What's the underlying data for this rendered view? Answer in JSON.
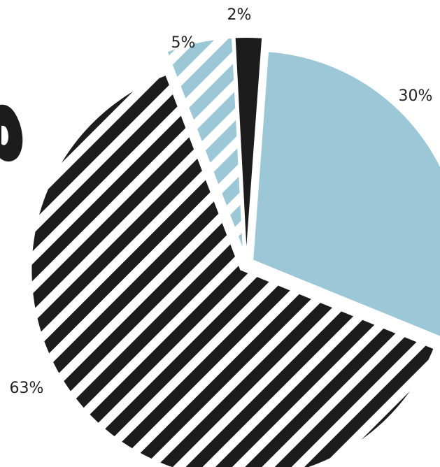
{
  "chart_data": {
    "type": "pie",
    "values": [
      2,
      30,
      63,
      5
    ],
    "labels": [
      "2%",
      "30%",
      "63%",
      "5%"
    ],
    "colors": [
      "#1c1c1c",
      "#9cc7d7",
      "#1c1c1c",
      "#9cc7d7"
    ],
    "fills": [
      "solid",
      "solid",
      "striped",
      "striped"
    ]
  }
}
